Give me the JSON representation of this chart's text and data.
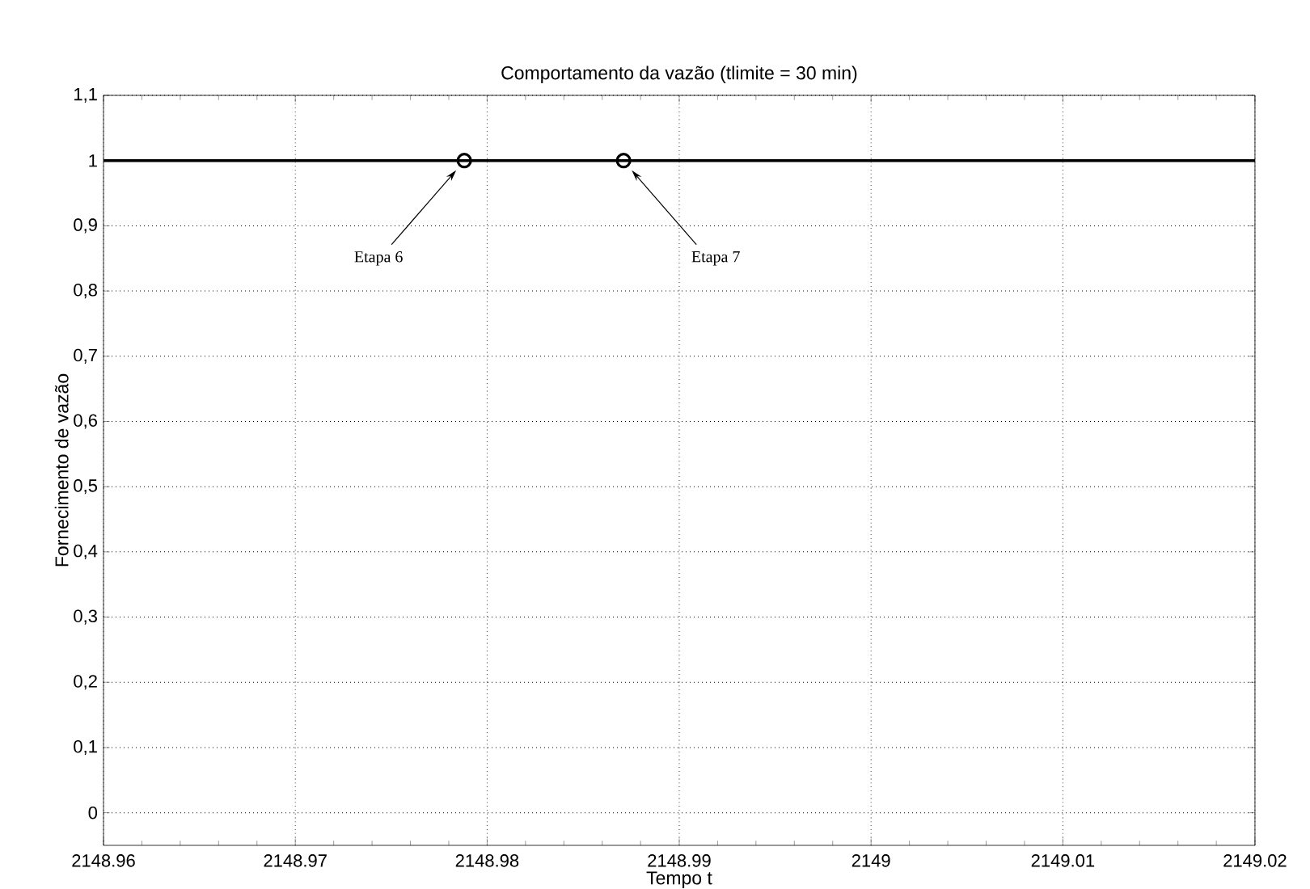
{
  "chart_data": {
    "type": "line",
    "title": "Comportamento da vazão (tlimite = 30 min)",
    "xlabel": "Tempo t",
    "ylabel": "Fornecimento de vazão",
    "series": [
      {
        "type": "line",
        "color": "#000000",
        "x": [
          2148.96,
          2149.02
        ],
        "values": [
          1,
          1
        ],
        "marker": "none"
      },
      {
        "type": "scatter",
        "color": "#000000",
        "x": [
          2148.9788,
          2148.9871
        ],
        "values": [
          1,
          1
        ],
        "marker": "circle"
      }
    ],
    "annotations": [
      "Etapa 6",
      "Etapa 7"
    ],
    "xlim": [
      2148.96,
      2149.02
    ],
    "ylim": [
      -0.05,
      1.1
    ],
    "xticks": [
      2148.96,
      2148.97,
      2148.98,
      2148.99,
      2149,
      2149.01,
      2149.02
    ],
    "yticks": [
      {
        "value": 0,
        "label": "0"
      },
      {
        "value": 0.1,
        "label": "0,1"
      },
      {
        "value": 0.2,
        "label": "0,2"
      },
      {
        "value": 0.3,
        "label": "0,3"
      },
      {
        "value": 0.4,
        "label": "0,4"
      },
      {
        "value": 0.5,
        "label": "0,5"
      },
      {
        "value": 0.6,
        "label": "0,6"
      },
      {
        "value": 0.7,
        "label": "0,7"
      },
      {
        "value": 0.8,
        "label": "0,8"
      },
      {
        "value": 0.9,
        "label": "0,9"
      },
      {
        "value": 1,
        "label": "1"
      },
      {
        "value": 1.1,
        "label": "1,1"
      }
    ],
    "grid": true,
    "line_style": "solid"
  }
}
